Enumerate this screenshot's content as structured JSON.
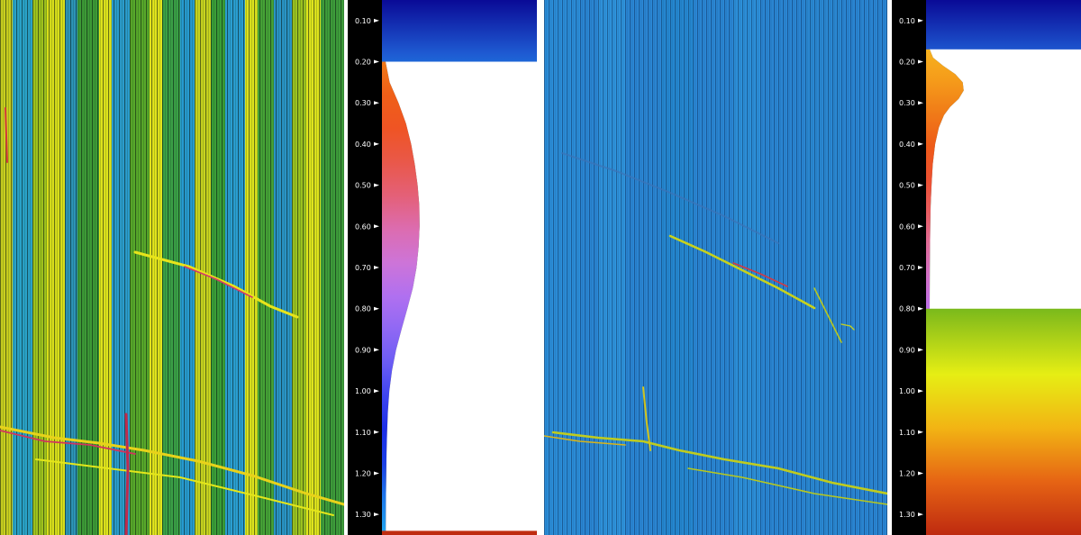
{
  "chart_data": [
    {
      "type": "heatmap",
      "panel": "left",
      "title": "",
      "colorbar": {
        "ticks": [
          "0.10",
          "0.20",
          "0.30",
          "0.40",
          "0.50",
          "0.60",
          "0.70",
          "0.80",
          "0.90",
          "1.00",
          "1.10",
          "1.20",
          "1.30"
        ],
        "range": [
          0.05,
          1.35
        ],
        "colors": [
          "#0a0a96",
          "#1e5ad2",
          "#18aaf0",
          "#20a6a8",
          "#26a14a",
          "#2f9e20",
          "#8fc21a",
          "#e6ee14",
          "#f2b414",
          "#e66414",
          "#be2a10"
        ],
        "histogram": {
          "values": [
            0.2,
            0.25,
            0.3,
            0.35,
            0.4,
            0.45,
            0.5,
            0.55,
            0.6,
            0.65,
            0.7,
            0.75,
            0.8,
            0.85,
            0.9,
            0.95,
            1.0,
            1.05,
            1.1,
            1.15,
            1.2,
            1.25,
            1.3,
            1.34
          ],
          "counts": [
            0.0,
            0.12,
            0.38,
            0.6,
            0.75,
            0.86,
            0.94,
            0.99,
            1.0,
            0.97,
            0.91,
            0.8,
            0.64,
            0.47,
            0.31,
            0.19,
            0.11,
            0.07,
            0.045,
            0.03,
            0.02,
            0.012,
            0.008,
            0.004
          ],
          "colors": [
            "#f07a18",
            "#ef5f18",
            "#ef5424",
            "#e9584a",
            "#e46078",
            "#dc6cb0",
            "#cd74d8",
            "#b070f0",
            "#8f68f4",
            "#6a5cf4",
            "#3c44f0",
            "#1c2ee6",
            "#1c40e6",
            "#1e78ea",
            "#22a4ee"
          ]
        }
      }
    },
    {
      "type": "heatmap",
      "panel": "right",
      "title": "",
      "colorbar": {
        "ticks": [
          "0.10",
          "0.20",
          "0.30",
          "0.40",
          "0.50",
          "0.60",
          "0.70",
          "0.80",
          "0.90",
          "1.00",
          "1.10",
          "1.20",
          "1.30"
        ],
        "range": [
          0.05,
          1.35
        ],
        "colors": [
          "#0a0a96",
          "#1e5ad2",
          "#18aaf0",
          "#20a6a8",
          "#26a14a",
          "#2f9e20",
          "#8fc21a",
          "#e6ee14",
          "#f2b414",
          "#e66414",
          "#be2a10"
        ],
        "histogram": {
          "values": [
            0.17,
            0.19,
            0.21,
            0.23,
            0.25,
            0.27,
            0.29,
            0.31,
            0.33,
            0.36,
            0.4,
            0.45,
            0.5,
            0.55,
            0.6,
            0.65,
            0.7,
            0.75,
            0.8
          ],
          "counts": [
            0.0,
            0.1,
            0.4,
            0.75,
            0.97,
            1.0,
            0.85,
            0.6,
            0.42,
            0.27,
            0.16,
            0.09,
            0.055,
            0.03,
            0.018,
            0.01,
            0.005,
            0.002,
            0.0
          ],
          "colors": [
            "#f7b21e",
            "#f59a1a",
            "#f07a18",
            "#ee5a18",
            "#ec5030",
            "#e85c60",
            "#e06c98",
            "#d270c8",
            "#bc70e8"
          ]
        }
      }
    }
  ]
}
